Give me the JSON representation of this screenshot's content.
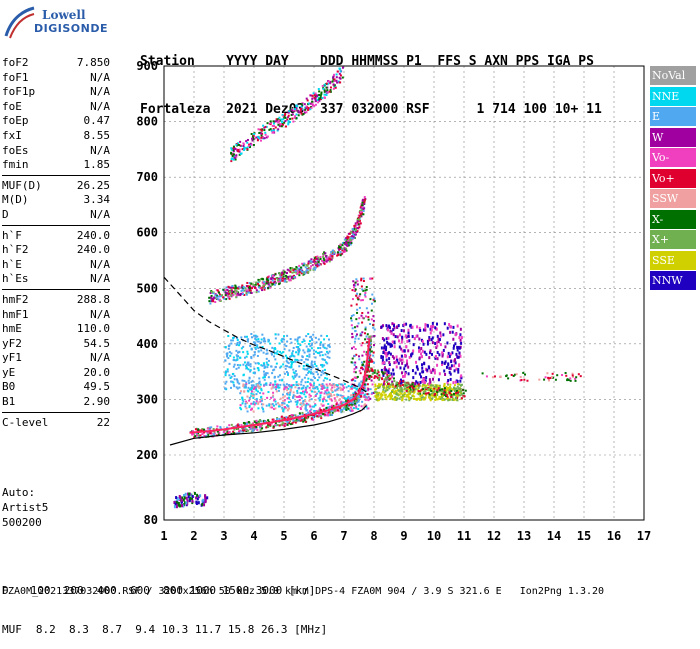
{
  "logo": {
    "top": "Lowell",
    "main": "DIGISONDE"
  },
  "header": {
    "line1": "Station    YYYY DAY    DDD HHMMSS P1  FFS S AXN PPS IGA PS",
    "line2": "Fortaleza  2021 Dez03  337 032000 RSF      1 714 100 10+ 11"
  },
  "params_groups": [
    [
      [
        "foF2",
        "7.850"
      ],
      [
        "foF1",
        "N/A"
      ],
      [
        "foF1p",
        "N/A"
      ],
      [
        "foE",
        "N/A"
      ],
      [
        "foEp",
        "0.47"
      ],
      [
        "fxI",
        "8.55"
      ],
      [
        "foEs",
        "N/A"
      ],
      [
        "fmin",
        "1.85"
      ]
    ],
    [
      [
        "MUF(D)",
        "26.25"
      ],
      [
        "M(D)",
        "3.34"
      ],
      [
        "D",
        "N/A"
      ]
    ],
    [
      [
        "h`F",
        "240.0"
      ],
      [
        "h`F2",
        "240.0"
      ],
      [
        "h`E",
        "N/A"
      ],
      [
        "h`Es",
        "N/A"
      ]
    ],
    [
      [
        "hmF2",
        "288.8"
      ],
      [
        "hmF1",
        "N/A"
      ],
      [
        "hmE",
        "110.0"
      ],
      [
        "yF2",
        "54.5"
      ],
      [
        "yF1",
        "N/A"
      ],
      [
        "yE",
        "20.0"
      ],
      [
        "B0",
        "49.5"
      ],
      [
        "B1",
        "2.90"
      ]
    ],
    [
      [
        "C-level",
        "22"
      ]
    ]
  ],
  "auto": {
    "label": "Auto:",
    "artist": "Artist5",
    "version": "500200"
  },
  "legend": [
    {
      "label": "NoVal",
      "color": "#a0a0a0"
    },
    {
      "label": "NNE",
      "color": "#00d8f0"
    },
    {
      "label": "E",
      "color": "#50a8f0"
    },
    {
      "label": "W",
      "color": "#a000a0"
    },
    {
      "label": "Vo-",
      "color": "#f040c0"
    },
    {
      "label": "Vo+",
      "color": "#e00030"
    },
    {
      "label": "SSW",
      "color": "#f0a0a0"
    },
    {
      "label": "X-",
      "color": "#007000"
    },
    {
      "label": "X+",
      "color": "#70b050"
    },
    {
      "label": "SSE",
      "color": "#d0d000"
    },
    {
      "label": "NNW",
      "color": "#2000c0"
    }
  ],
  "footer": {
    "d_label": "D",
    "d_values": "100  200  400  600  800 1000 1500 3000 [km]",
    "muf_label": "MUF",
    "muf_values": "8.2  8.3  8.7  9.4 10.3 11.7 15.8 26.3 [MHz]",
    "file_line": "FZA0M_2021337032000.RSF / 320fx256h 50 kHz 5.0 km / DPS-4 FZA0M 904 / 3.9 S 321.6 E   Ion2Png 1.3.20"
  },
  "chart_data": {
    "type": "scatter",
    "xlim": [
      1,
      17
    ],
    "ylim": [
      80,
      900
    ],
    "xticks": [
      1,
      2,
      3,
      4,
      5,
      6,
      7,
      8,
      9,
      10,
      11,
      12,
      13,
      14,
      15,
      16,
      17
    ],
    "yticks": [
      80,
      200,
      300,
      400,
      500,
      600,
      700,
      800,
      900
    ],
    "grid": true,
    "trace_f2_o": [
      [
        1.85,
        240
      ],
      [
        2.5,
        243
      ],
      [
        3,
        246
      ],
      [
        3.5,
        250
      ],
      [
        4,
        254
      ],
      [
        4.5,
        258
      ],
      [
        5,
        263
      ],
      [
        5.5,
        268
      ],
      [
        6,
        274
      ],
      [
        6.5,
        281
      ],
      [
        7,
        290
      ],
      [
        7.3,
        300
      ],
      [
        7.5,
        312
      ],
      [
        7.65,
        330
      ],
      [
        7.75,
        360
      ],
      [
        7.8,
        385
      ],
      [
        7.85,
        410
      ]
    ],
    "profile_curve": [
      [
        1.2,
        218
      ],
      [
        2,
        230
      ],
      [
        3,
        236
      ],
      [
        4,
        240
      ],
      [
        5,
        246
      ],
      [
        6,
        254
      ],
      [
        6.5,
        260
      ],
      [
        7,
        268
      ],
      [
        7.3,
        274
      ],
      [
        7.6,
        281
      ],
      [
        7.75,
        289
      ]
    ],
    "mufd_dashed": [
      [
        1,
        520
      ],
      [
        1.5,
        490
      ],
      [
        2,
        460
      ],
      [
        2.5,
        440
      ],
      [
        3,
        425
      ],
      [
        3.5,
        410
      ],
      [
        4,
        398
      ],
      [
        4.5,
        388
      ],
      [
        5,
        377
      ],
      [
        5.5,
        366
      ],
      [
        6,
        356
      ],
      [
        6.5,
        345
      ],
      [
        7,
        334
      ],
      [
        7.5,
        322
      ],
      [
        7.85,
        310
      ]
    ],
    "multihop_2": [
      [
        2.5,
        485
      ],
      [
        3,
        492
      ],
      [
        3.5,
        498
      ],
      [
        4,
        504
      ],
      [
        4.5,
        514
      ],
      [
        5,
        523
      ],
      [
        5.5,
        534
      ],
      [
        6,
        546
      ],
      [
        6.5,
        560
      ],
      [
        7,
        578
      ],
      [
        7.3,
        600
      ],
      [
        7.5,
        630
      ],
      [
        7.65,
        660
      ]
    ],
    "multihop_3": [
      [
        3.2,
        740
      ],
      [
        3.5,
        755
      ],
      [
        4,
        772
      ],
      [
        4.5,
        790
      ],
      [
        5,
        805
      ],
      [
        5.5,
        822
      ],
      [
        6,
        842
      ],
      [
        6.5,
        865
      ],
      [
        6.9,
        890
      ]
    ],
    "extraordinary_x": [
      [
        7.8,
        350
      ],
      [
        8.2,
        345
      ],
      [
        8.6,
        335
      ],
      [
        9,
        325
      ],
      [
        9.5,
        320
      ],
      [
        10,
        318
      ],
      [
        10.5,
        315
      ],
      [
        11,
        312
      ]
    ],
    "es_trace": [
      [
        1.3,
        115
      ],
      [
        1.6,
        118
      ],
      [
        1.9,
        125
      ],
      [
        2.2,
        120
      ],
      [
        2.5,
        115
      ]
    ]
  }
}
